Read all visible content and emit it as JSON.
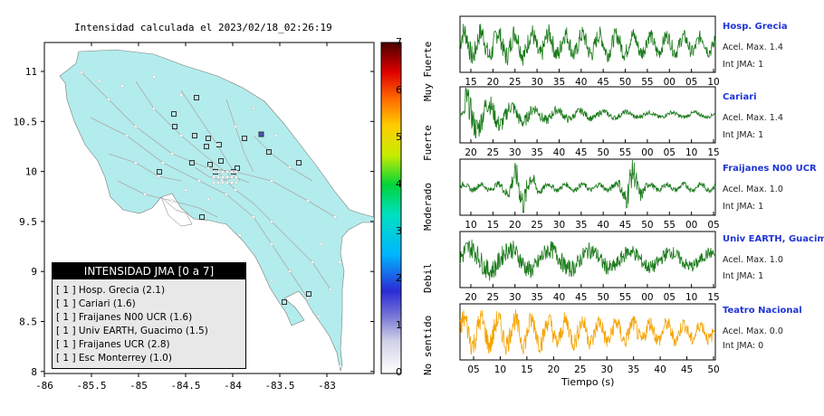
{
  "map": {
    "title": "Intensidad calculada el 2023/02/18_02:26:19",
    "lon_ticks": [
      "-86",
      "-85.5",
      "-85",
      "-84.5",
      "-84",
      "-83.5",
      "-83"
    ],
    "lat_ticks": [
      "11",
      "10.5",
      "10",
      "9.5",
      "9",
      "8.5",
      "8"
    ],
    "land_color": "#b3ecec",
    "road_color": "#aaaaaa"
  },
  "legend": {
    "title": "INTENSIDAD JMA [0 a 7]",
    "rows": [
      "[ 1 ]  Hosp. Grecia (2.1)",
      "[ 1 ]  Cariari (1.6)",
      "[ 1 ]  Fraijanes N00 UCR (1.6)",
      "[ 1 ]  Univ EARTH, Guacimo (1.5)",
      "[ 1 ]  Fraijanes UCR (2.8)",
      "[ 1 ]  Esc Monterrey (1.0)"
    ]
  },
  "colorbar": {
    "ticks": [
      "0",
      "1",
      "2",
      "3",
      "4",
      "5",
      "6",
      "7"
    ],
    "categories": [
      "No sentido",
      "Debil",
      "Moderado",
      "Fuerte",
      "Muy Fuerte"
    ]
  },
  "waveforms": {
    "xlabel": "Tiempo (s)",
    "panels": [
      {
        "name": "Hosp. Grecia",
        "accel": "Acel. Max. 1.4",
        "jma": "Int JMA: 1",
        "ticks": [
          "15",
          "20",
          "25",
          "30",
          "35",
          "40",
          "45",
          "50",
          "55",
          "00",
          "05",
          "10"
        ],
        "color": "#1a7a1a",
        "amplitude_shape": "noisy"
      },
      {
        "name": "Cariari",
        "accel": "Acel. Max. 1.4",
        "jma": "Int JMA: 1",
        "ticks": [
          "20",
          "25",
          "30",
          "35",
          "40",
          "45",
          "50",
          "55",
          "00",
          "05",
          "10",
          "15"
        ],
        "color": "#1a7a1a",
        "amplitude_shape": "decay"
      },
      {
        "name": "Fraijanes N00 UCR",
        "accel": "Acel. Max. 1.0",
        "jma": "Int JMA: 1",
        "ticks": [
          "10",
          "15",
          "20",
          "25",
          "30",
          "35",
          "40",
          "45",
          "50",
          "55",
          "00",
          "05"
        ],
        "color": "#1a7a1a",
        "amplitude_shape": "bursts"
      },
      {
        "name": "Univ EARTH, Guacimo",
        "accel": "Acel. Max. 1.0",
        "jma": "Int JMA: 1",
        "ticks": [
          "20",
          "25",
          "30",
          "35",
          "40",
          "45",
          "50",
          "55",
          "00",
          "05",
          "10",
          "15"
        ],
        "color": "#1a7a1a",
        "amplitude_shape": "slow"
      },
      {
        "name": "Teatro Nacional",
        "accel": "Acel. Max. 0.0",
        "jma": "Int JMA: 0",
        "ticks": [
          "05",
          "10",
          "15",
          "20",
          "25",
          "30",
          "35",
          "40",
          "45",
          "50"
        ],
        "color": "#f5a300",
        "amplitude_shape": "noisy"
      }
    ]
  }
}
